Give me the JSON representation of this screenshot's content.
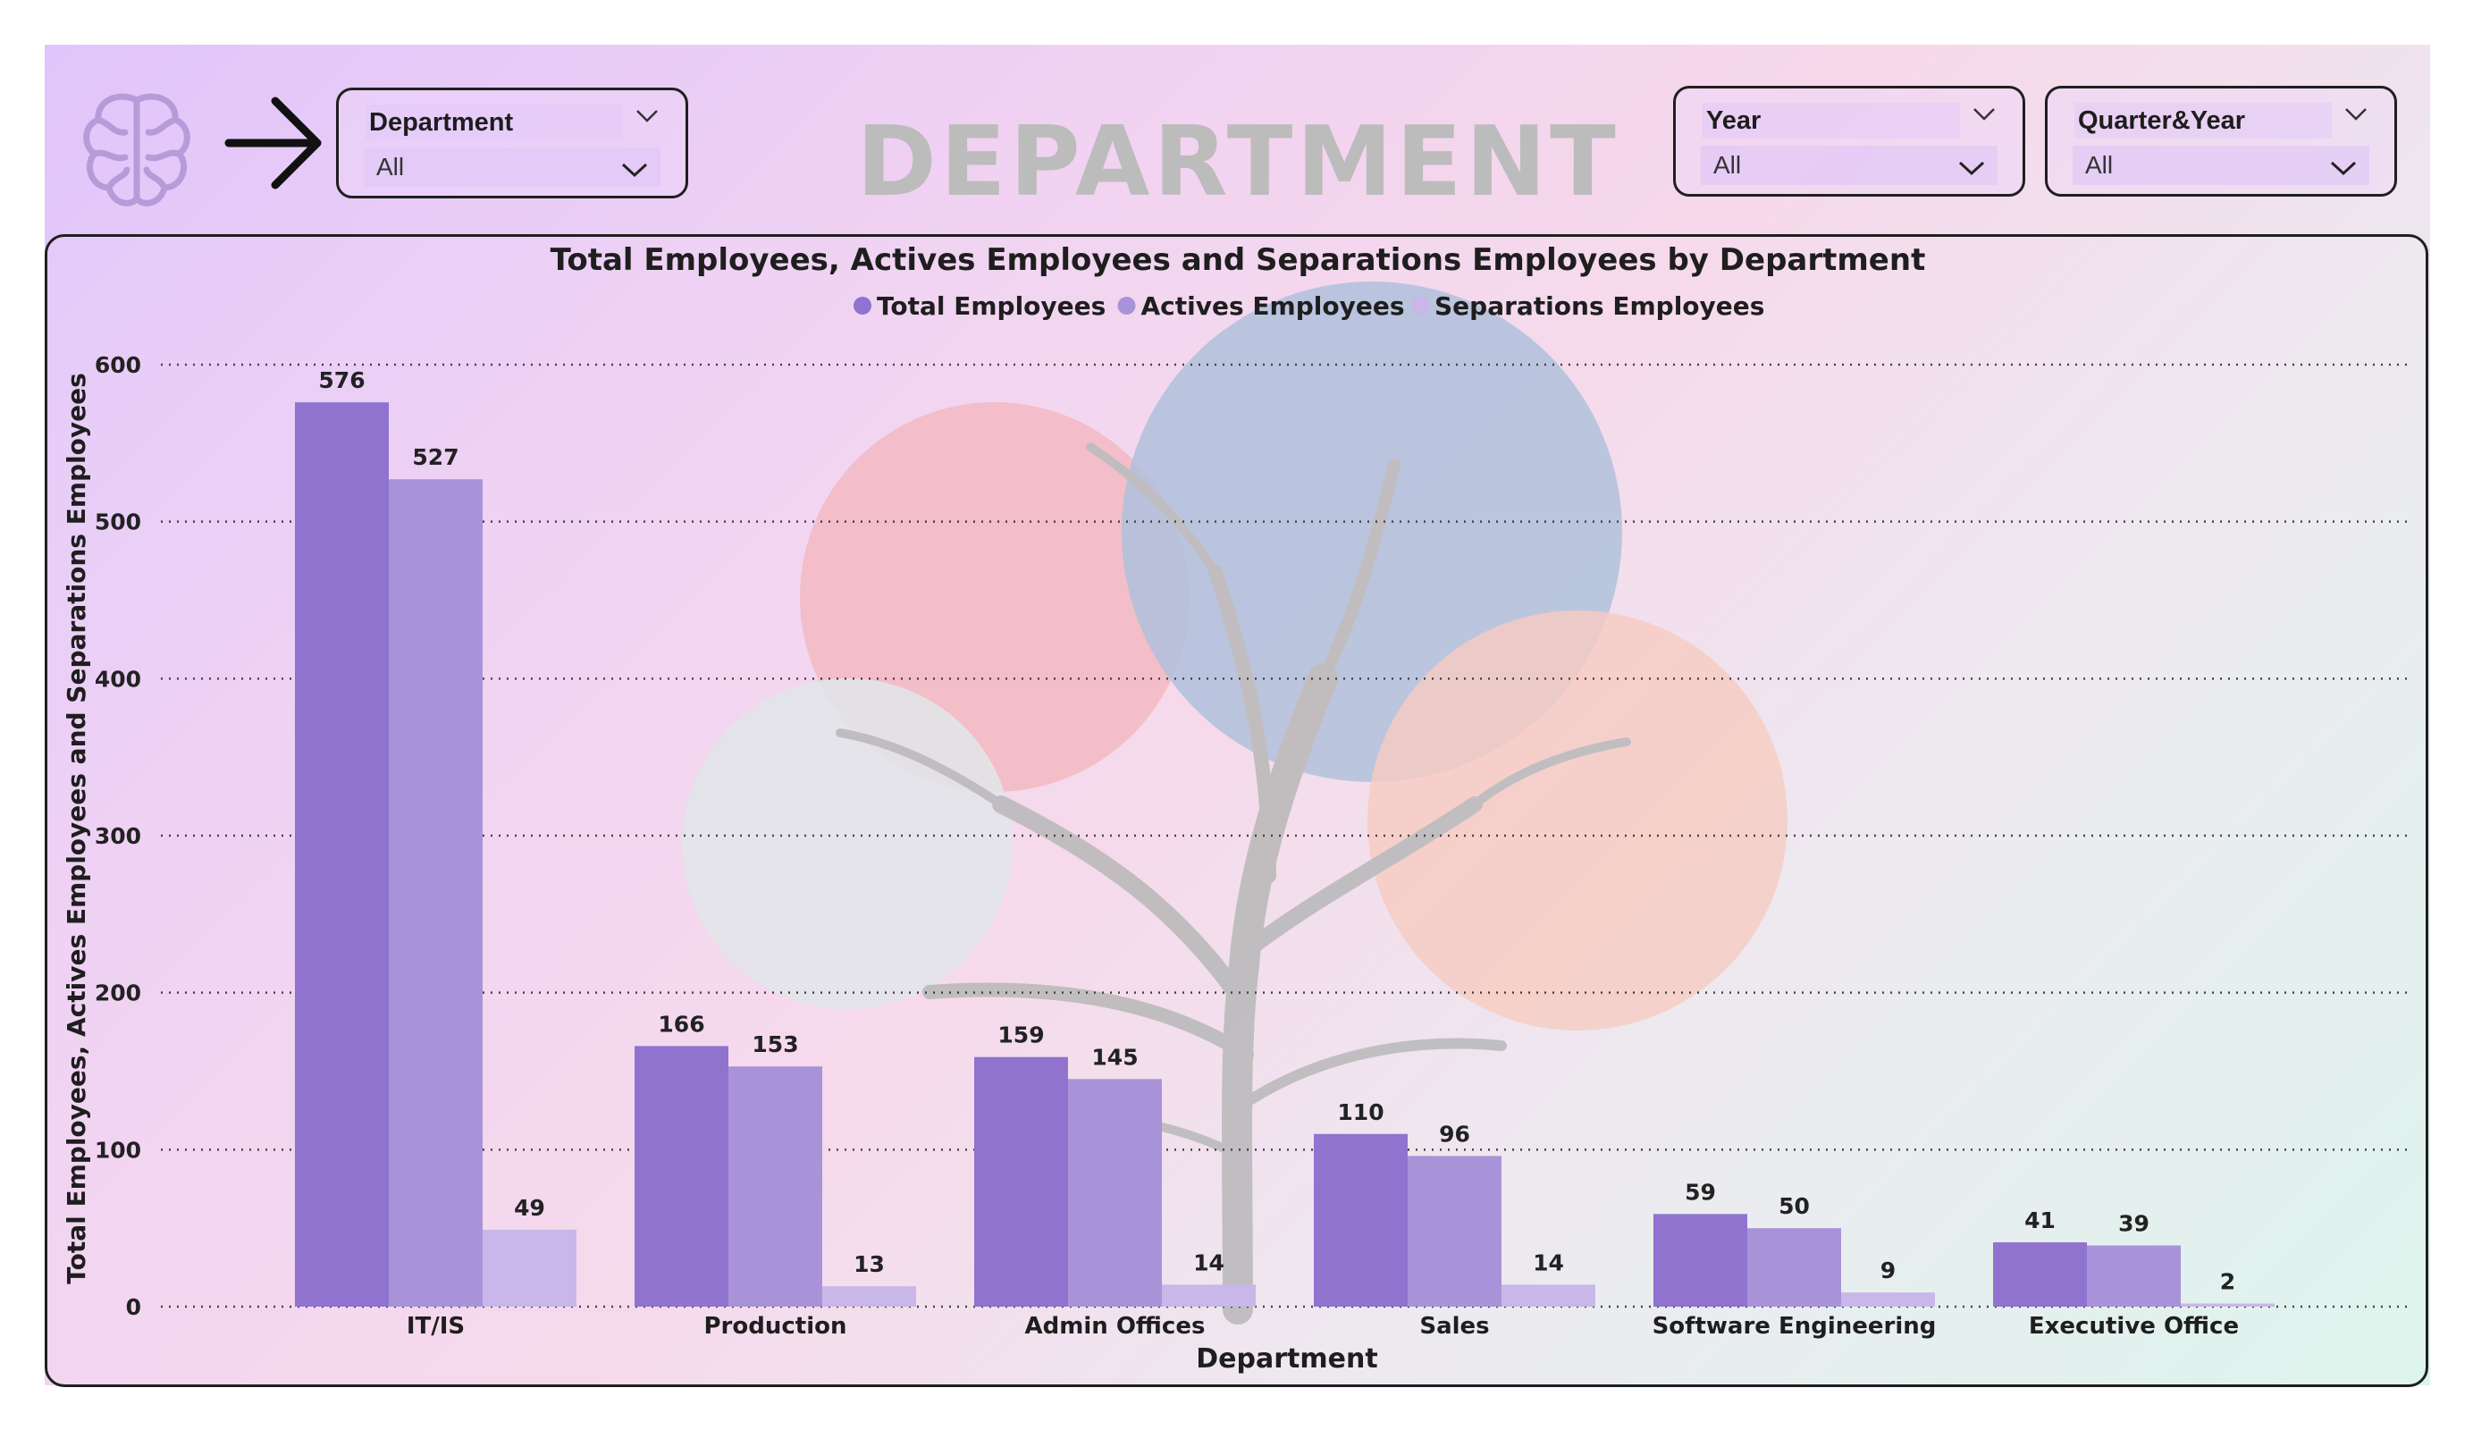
{
  "header": {
    "watermark_text": "DEPARTMENT",
    "logo_icon": "brain-icon",
    "arrow_icon": "arrow-right-icon"
  },
  "slicers": {
    "department": {
      "title": "Department",
      "value": "All"
    },
    "year": {
      "title": "Year",
      "value": "All"
    },
    "quarter_year": {
      "title": "Quarter&Year",
      "value": "All"
    }
  },
  "colors": {
    "total": "#9073cf",
    "actives": "#a993d8",
    "separations": "#c8b7e8",
    "gridline": "#444444",
    "background_start": "#e0c5fb",
    "background_end": "#dcf5ec"
  },
  "chart_data": {
    "type": "bar",
    "title": "Total Employees, Actives Employees and Separations Employees by Department",
    "xlabel": "Department",
    "ylabel": "Total Employees, Actives Employees and Separations Employees",
    "ylim": [
      0,
      600
    ],
    "yticks": [
      0,
      100,
      200,
      300,
      400,
      500,
      600
    ],
    "grid": true,
    "legend_position": "top-center",
    "categories": [
      "IT/IS",
      "Production",
      "Admin Offices",
      "Sales",
      "Software Engineering",
      "Executive Office"
    ],
    "series": [
      {
        "name": "Total Employees",
        "values": [
          576,
          166,
          159,
          110,
          59,
          41
        ]
      },
      {
        "name": "Actives Employees",
        "values": [
          527,
          153,
          145,
          96,
          50,
          39
        ]
      },
      {
        "name": "Separations Employees",
        "values": [
          49,
          13,
          14,
          14,
          9,
          2
        ]
      }
    ]
  }
}
